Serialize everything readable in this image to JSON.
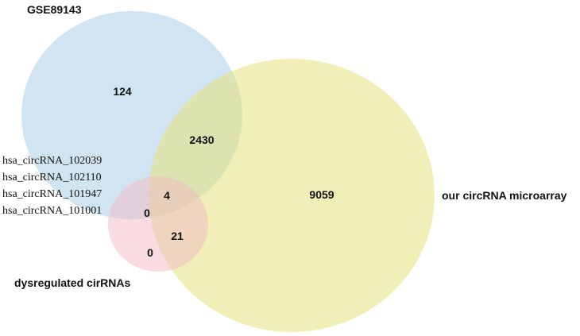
{
  "sets": {
    "gse": {
      "label": "GSE89143",
      "color": "#a9cfe6"
    },
    "microarray": {
      "label": "our circRNA microarray",
      "color": "#e6e27c"
    },
    "dysregulated": {
      "label": "dysregulated cirRNAs",
      "color": "#f1b9c3"
    }
  },
  "counts": {
    "gse_only": "124",
    "gse_microarray": "2430",
    "microarray_only": "9059",
    "all_three": "4",
    "gse_dysregulated": "0",
    "microarray_dysregulated": "21",
    "dysregulated_only": "0"
  },
  "annotation_genes": [
    "hsa_circRNA_102039",
    "hsa_circRNA_102110",
    "hsa_circRNA_101947",
    "hsa_circRNA_101001"
  ]
}
